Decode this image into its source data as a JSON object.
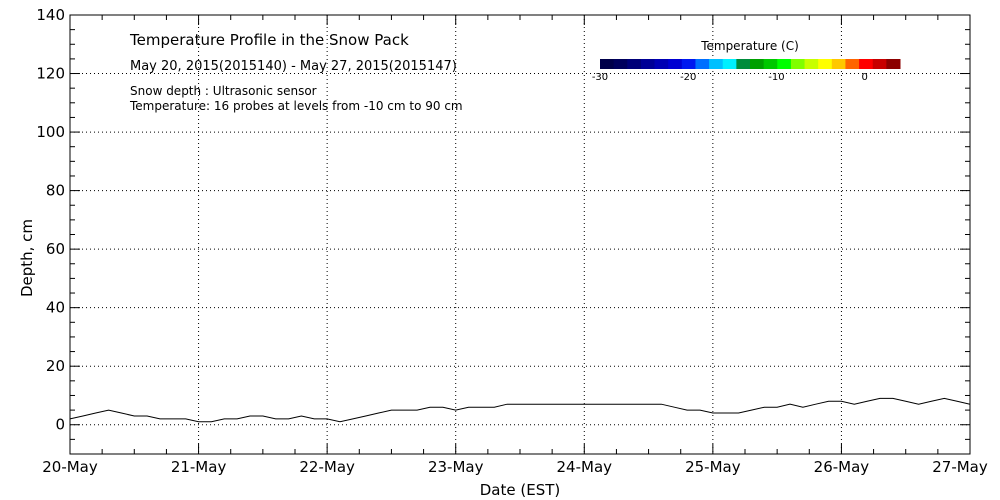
{
  "chart_data": {
    "type": "line",
    "title": "Temperature Profile in the Snow Pack",
    "subtitle": "May 20, 2015(2015140) - May 27, 2015(2015147)",
    "annotations": [
      "Snow depth : Ultrasonic sensor",
      "Temperature: 16 probes at levels from -10 cm to 90 cm"
    ],
    "xlabel": "Date (EST)",
    "ylabel": "Depth, cm",
    "x_ticks": [
      "20-May",
      "21-May",
      "22-May",
      "23-May",
      "24-May",
      "25-May",
      "26-May",
      "27-May"
    ],
    "xlim": [
      0,
      7
    ],
    "ylim": [
      -10,
      140
    ],
    "y_ticks": [
      0,
      20,
      40,
      60,
      80,
      100,
      120,
      140
    ],
    "grid": true,
    "colorbar": {
      "title": "Temperature (C)",
      "ticks": [
        -30,
        -20,
        -10,
        0
      ],
      "range": [
        -30,
        4
      ],
      "colors": [
        "#00004a",
        "#00005c",
        "#000078",
        "#000096",
        "#0000b4",
        "#0000d2",
        "#0018f0",
        "#0070ff",
        "#00c0ff",
        "#00f0ff",
        "#008c3c",
        "#00a000",
        "#00c800",
        "#00ff00",
        "#80ff00",
        "#c8ff00",
        "#ffff00",
        "#ffc800",
        "#ff6400",
        "#ff0000",
        "#c80000",
        "#8c0000"
      ]
    },
    "series": [
      {
        "x": [
          0,
          0.1,
          0.2,
          0.3,
          0.4,
          0.5,
          0.6,
          0.7,
          0.8,
          0.9,
          1.0,
          1.1,
          1.2,
          1.3,
          1.4,
          1.5,
          1.6,
          1.7,
          1.8,
          1.9,
          2.0,
          2.1,
          2.2,
          2.3,
          2.4,
          2.5,
          2.6,
          2.7,
          2.8,
          2.9,
          3.0,
          3.1,
          3.2,
          3.3,
          3.4,
          3.5,
          3.6,
          4.6,
          4.7,
          4.8,
          4.9,
          5.0,
          5.1,
          5.2,
          5.3,
          5.4,
          5.5,
          5.6,
          5.7,
          5.8,
          5.9,
          6.0,
          6.1,
          6.2,
          6.3,
          6.4,
          6.5,
          6.6,
          6.7,
          6.8,
          6.9,
          7.0
        ],
        "values": [
          2,
          3,
          4,
          5,
          4,
          3,
          3,
          2,
          2,
          2,
          1,
          1,
          2,
          2,
          3,
          3,
          2,
          2,
          3,
          2,
          2,
          1,
          2,
          3,
          4,
          5,
          5,
          5,
          6,
          6,
          5,
          6,
          6,
          6,
          7,
          7,
          7,
          7,
          6,
          5,
          5,
          4,
          4,
          4,
          5,
          6,
          6,
          7,
          6,
          7,
          8,
          8,
          7,
          8,
          9,
          9,
          8,
          7,
          8,
          9,
          8,
          7
        ]
      }
    ]
  }
}
